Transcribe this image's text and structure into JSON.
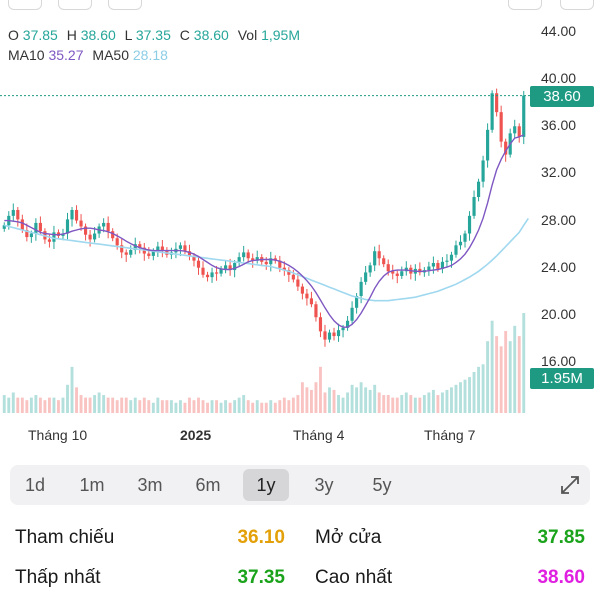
{
  "legend": {
    "open_key": "O",
    "open": "37.85",
    "high_key": "H",
    "high": "38.60",
    "low_key": "L",
    "low": "37.35",
    "close_key": "C",
    "close": "38.60",
    "vol_key": "Vol",
    "vol": "1,95M",
    "ma10_key": "MA10",
    "ma10": "35.27",
    "ma50_key": "MA50",
    "ma50": "28.18"
  },
  "colors": {
    "up": "#26a69a",
    "down": "#ef5350",
    "ma10": "#7e57c2",
    "ma50": "#9fd8ef",
    "price_tag": "#1e9a83",
    "ref_value": "#e3a008",
    "green_value": "#1aa31a",
    "pink_value": "#e020e0"
  },
  "chart_data": {
    "type": "candlestick",
    "y_ticks": [
      "44.00",
      "40.00",
      "36.00",
      "32.00",
      "28.00",
      "24.00",
      "20.00",
      "16.00"
    ],
    "ylim": [
      16,
      44
    ],
    "x_tick_labels": [
      "Tháng 10",
      "2025",
      "Tháng 4",
      "Tháng 7"
    ],
    "last_price_label": "38.60",
    "last_price": 38.6,
    "volume_label": "1.95M",
    "series_close": [
      27.6,
      28.4,
      28.9,
      28.1,
      27.2,
      26.6,
      26.9,
      27.8,
      27.1,
      26.4,
      26.2,
      27.0,
      26.7,
      26.9,
      28.1,
      28.9,
      28.0,
      27.5,
      26.8,
      26.4,
      26.9,
      27.5,
      27.8,
      27.1,
      26.5,
      25.9,
      25.3,
      25.1,
      25.5,
      26.0,
      25.7,
      25.2,
      25.0,
      25.4,
      25.8,
      25.5,
      25.1,
      25.3,
      25.6,
      25.9,
      25.4,
      25.0,
      24.6,
      24.0,
      23.4,
      23.2,
      23.6,
      23.5,
      23.9,
      24.2,
      23.8,
      24.4,
      24.9,
      25.3,
      24.8,
      24.6,
      24.9,
      24.5,
      24.3,
      24.8,
      24.6,
      24.0,
      23.8,
      23.4,
      23.0,
      22.4,
      21.8,
      21.4,
      20.9,
      19.8,
      18.6,
      17.9,
      18.5,
      18.2,
      18.7,
      18.9,
      19.5,
      20.6,
      21.6,
      22.8,
      23.6,
      24.2,
      25.4,
      24.8,
      24.3,
      23.7,
      23.5,
      23.3,
      23.7,
      24.0,
      23.5,
      23.9,
      23.6,
      23.8,
      24.1,
      24.4,
      23.9,
      24.5,
      24.6,
      25.1,
      25.9,
      26.2,
      26.9,
      28.4,
      30.0,
      31.3,
      33.1,
      35.7,
      38.8,
      37.2,
      34.7,
      33.6,
      35.4,
      36.0,
      35.1,
      38.6
    ],
    "series_ma10": [
      28.0,
      28.0,
      27.95,
      27.9,
      27.8,
      27.6,
      27.4,
      27.2,
      27.0,
      26.9,
      26.85,
      26.8,
      26.8,
      26.85,
      26.95,
      27.1,
      27.2,
      27.3,
      27.35,
      27.35,
      27.3,
      27.2,
      27.15,
      27.05,
      26.9,
      26.7,
      26.5,
      26.25,
      26.05,
      25.85,
      25.7,
      25.6,
      25.5,
      25.45,
      25.45,
      25.45,
      25.45,
      25.45,
      25.45,
      25.45,
      25.4,
      25.3,
      25.15,
      24.95,
      24.7,
      24.45,
      24.2,
      24.0,
      23.9,
      23.85,
      23.85,
      23.95,
      24.1,
      24.3,
      24.5,
      24.6,
      24.65,
      24.7,
      24.7,
      24.7,
      24.65,
      24.55,
      24.4,
      24.2,
      23.95,
      23.65,
      23.3,
      22.9,
      22.45,
      21.9,
      21.25,
      20.6,
      20.0,
      19.5,
      19.15,
      18.95,
      18.95,
      19.2,
      19.6,
      20.15,
      20.8,
      21.5,
      22.25,
      22.85,
      23.3,
      23.6,
      23.75,
      23.8,
      23.8,
      23.8,
      23.75,
      23.7,
      23.7,
      23.7,
      23.75,
      23.8,
      23.85,
      23.95,
      24.05,
      24.2,
      24.45,
      24.75,
      25.15,
      25.7,
      26.4,
      27.2,
      28.2,
      29.5,
      31.0,
      32.3,
      33.2,
      33.9,
      34.5,
      35.0,
      35.1,
      35.27
    ],
    "series_ma50": [
      27.6,
      27.5,
      27.4,
      27.3,
      27.2,
      27.1,
      27.0,
      26.9,
      26.8,
      26.7,
      26.6,
      26.5,
      26.45,
      26.4,
      26.35,
      26.3,
      26.25,
      26.2,
      26.15,
      26.1,
      26.05,
      26.0,
      25.95,
      25.9,
      25.85,
      25.8,
      25.75,
      25.7,
      25.65,
      25.6,
      25.55,
      25.5,
      25.45,
      25.4,
      25.35,
      25.3,
      25.25,
      25.2,
      25.15,
      25.1,
      25.05,
      25.0,
      24.95,
      24.9,
      24.85,
      24.8,
      24.75,
      24.7,
      24.65,
      24.6,
      24.55,
      24.5,
      24.45,
      24.4,
      24.35,
      24.3,
      24.25,
      24.2,
      24.15,
      24.1,
      24.0,
      23.9,
      23.8,
      23.7,
      23.55,
      23.4,
      23.25,
      23.1,
      22.95,
      22.8,
      22.65,
      22.5,
      22.35,
      22.2,
      22.05,
      21.9,
      21.75,
      21.6,
      21.5,
      21.4,
      21.3,
      21.25,
      21.2,
      21.2,
      21.2,
      21.2,
      21.25,
      21.3,
      21.35,
      21.4,
      21.45,
      21.5,
      21.6,
      21.7,
      21.8,
      21.9,
      22.0,
      22.15,
      22.3,
      22.45,
      22.6,
      22.8,
      23.0,
      23.2,
      23.45,
      23.7,
      24.0,
      24.3,
      24.65,
      25.0,
      25.4,
      25.8,
      26.2,
      26.6,
      27.0,
      27.6,
      28.18
    ],
    "series_volume": [
      0.35,
      0.3,
      0.4,
      0.3,
      0.3,
      0.25,
      0.3,
      0.35,
      0.3,
      0.25,
      0.3,
      0.3,
      0.25,
      0.3,
      0.55,
      0.9,
      0.5,
      0.35,
      0.3,
      0.3,
      0.35,
      0.4,
      0.35,
      0.3,
      0.3,
      0.25,
      0.3,
      0.3,
      0.25,
      0.3,
      0.25,
      0.3,
      0.25,
      0.2,
      0.3,
      0.25,
      0.25,
      0.25,
      0.2,
      0.25,
      0.2,
      0.3,
      0.25,
      0.3,
      0.25,
      0.2,
      0.25,
      0.25,
      0.2,
      0.25,
      0.2,
      0.25,
      0.3,
      0.35,
      0.25,
      0.2,
      0.25,
      0.2,
      0.2,
      0.25,
      0.2,
      0.25,
      0.3,
      0.25,
      0.3,
      0.35,
      0.6,
      0.5,
      0.45,
      0.6,
      0.9,
      0.4,
      0.5,
      0.45,
      0.35,
      0.3,
      0.4,
      0.55,
      0.5,
      0.6,
      0.5,
      0.45,
      0.55,
      0.4,
      0.35,
      0.35,
      0.3,
      0.3,
      0.35,
      0.4,
      0.35,
      0.3,
      0.3,
      0.35,
      0.4,
      0.45,
      0.35,
      0.4,
      0.45,
      0.5,
      0.55,
      0.6,
      0.65,
      0.7,
      0.8,
      0.9,
      0.95,
      1.4,
      1.8,
      1.5,
      1.3,
      1.6,
      1.4,
      1.7,
      1.5,
      1.95
    ]
  },
  "range_tabs": [
    "1d",
    "1m",
    "3m",
    "6m",
    "1y",
    "3y",
    "5y"
  ],
  "active_range": "1y",
  "stats": {
    "ref_label": "Tham chiếu",
    "ref_value": "36.10",
    "open_label": "Mở cửa",
    "open_value": "37.85",
    "low_label": "Thấp nhất",
    "low_value": "37.35",
    "high_label": "Cao nhất",
    "high_value": "38.60"
  }
}
